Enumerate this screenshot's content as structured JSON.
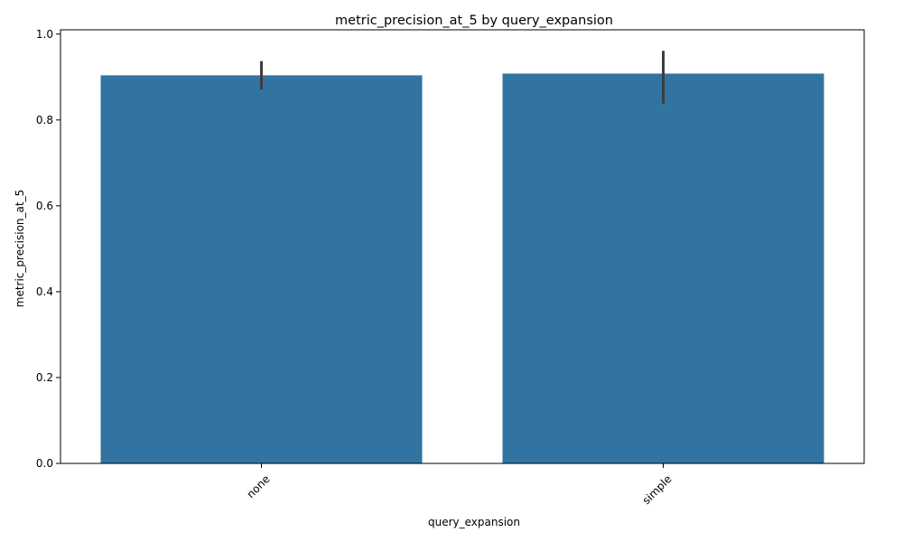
{
  "chart_data": {
    "type": "bar",
    "title": "metric_precision_at_5 by query_expansion",
    "xlabel": "query_expansion",
    "ylabel": "metric_precision_at_5",
    "categories": [
      "none",
      "simple"
    ],
    "values": [
      0.904,
      0.908
    ],
    "error_bars": [
      {
        "low": 0.871,
        "high": 0.937
      },
      {
        "low": 0.838,
        "high": 0.961
      }
    ],
    "ylim": [
      0,
      1.01
    ],
    "yticks": [
      "0.0",
      "0.2",
      "0.4",
      "0.6",
      "0.8",
      "1.0"
    ],
    "ytick_values": [
      0,
      0.2,
      0.4,
      0.6,
      0.8,
      1.0
    ],
    "grid": false,
    "bar_color": "#3274a1",
    "errorbar_color": "#3d3d3d"
  }
}
